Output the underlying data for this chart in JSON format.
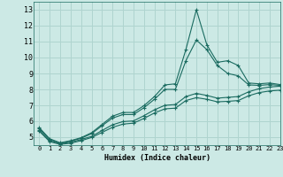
{
  "xlabel": "Humidex (Indice chaleur)",
  "ylabel": "",
  "bg_color": "#cce9e5",
  "grid_color": "#afd4cf",
  "line_color": "#1a6b60",
  "xlim": [
    -0.5,
    23
  ],
  "ylim": [
    4.5,
    13.5
  ],
  "xticks": [
    0,
    1,
    2,
    3,
    4,
    5,
    6,
    7,
    8,
    9,
    10,
    11,
    12,
    13,
    14,
    15,
    16,
    17,
    18,
    19,
    20,
    21,
    22,
    23
  ],
  "yticks": [
    5,
    6,
    7,
    8,
    9,
    10,
    11,
    12,
    13
  ],
  "series": [
    {
      "x": [
        0,
        1,
        2,
        3,
        4,
        5,
        6,
        7,
        8,
        9,
        10,
        11,
        12,
        13,
        14,
        15,
        16,
        17,
        18,
        19,
        20,
        21,
        22,
        23
      ],
      "y": [
        5.6,
        4.9,
        4.65,
        4.78,
        4.97,
        5.28,
        5.8,
        6.32,
        6.55,
        6.55,
        6.98,
        7.55,
        8.28,
        8.35,
        10.5,
        13.0,
        10.8,
        9.7,
        9.8,
        9.5,
        8.4,
        8.35,
        8.4,
        8.3
      ]
    },
    {
      "x": [
        0,
        1,
        2,
        3,
        4,
        5,
        6,
        7,
        8,
        9,
        10,
        11,
        12,
        13,
        14,
        15,
        16,
        17,
        18,
        19,
        20,
        21,
        22,
        23
      ],
      "y": [
        5.55,
        4.85,
        4.62,
        4.75,
        4.93,
        5.22,
        5.72,
        6.2,
        6.42,
        6.42,
        6.85,
        7.38,
        8.0,
        8.0,
        9.8,
        11.1,
        10.5,
        9.5,
        9.0,
        8.85,
        8.28,
        8.25,
        8.3,
        8.25
      ]
    },
    {
      "x": [
        0,
        1,
        2,
        3,
        4,
        5,
        6,
        7,
        8,
        9,
        10,
        11,
        12,
        13,
        14,
        15,
        16,
        17,
        18,
        19,
        20,
        21,
        22,
        23
      ],
      "y": [
        5.45,
        4.78,
        4.58,
        4.68,
        4.85,
        5.05,
        5.42,
        5.78,
        5.98,
        6.02,
        6.35,
        6.72,
        7.0,
        7.05,
        7.55,
        7.75,
        7.62,
        7.45,
        7.5,
        7.55,
        7.85,
        8.05,
        8.15,
        8.2
      ]
    },
    {
      "x": [
        0,
        1,
        2,
        3,
        4,
        5,
        6,
        7,
        8,
        9,
        10,
        11,
        12,
        13,
        14,
        15,
        16,
        17,
        18,
        19,
        20,
        21,
        22,
        23
      ],
      "y": [
        5.38,
        4.72,
        4.55,
        4.62,
        4.78,
        4.98,
        5.3,
        5.62,
        5.82,
        5.88,
        6.18,
        6.52,
        6.78,
        6.82,
        7.3,
        7.48,
        7.38,
        7.22,
        7.25,
        7.3,
        7.6,
        7.8,
        7.9,
        7.95
      ]
    }
  ]
}
